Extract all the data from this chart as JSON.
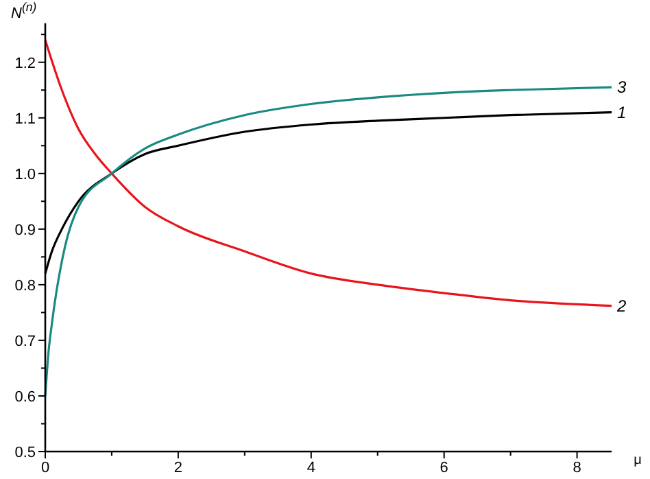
{
  "chart_data": {
    "type": "line",
    "xlabel": "μ",
    "ylabel": "N$^{(n)}$",
    "xlim": [
      0,
      8.52
    ],
    "ylim": [
      0.5,
      1.27
    ],
    "xticks": [
      0,
      {
        "value": 1,
        "label": null
      },
      2,
      {
        "value": 3,
        "label": null
      },
      4,
      {
        "value": 5,
        "label": null
      },
      6,
      {
        "value": 7,
        "label": null
      },
      8
    ],
    "yticks": [
      0.5,
      {
        "value": 0.55,
        "label": null
      },
      0.6,
      {
        "value": 0.65,
        "label": null
      },
      0.7,
      {
        "value": 0.75,
        "label": null
      },
      0.8,
      {
        "value": 0.85,
        "label": null
      },
      0.9,
      {
        "value": 0.95,
        "label": null
      },
      "1.0",
      {
        "value": 1.05,
        "label": null
      },
      1.1,
      {
        "value": 1.15,
        "label": null
      },
      1.2,
      {
        "value": 1.25,
        "label": null
      }
    ],
    "grid": false,
    "marker": "none",
    "line_style": "solid",
    "series": [
      {
        "name": "1",
        "color": "#000000",
        "x": [
          0,
          0.1,
          0.25,
          0.5,
          1,
          1.5,
          2,
          3,
          4,
          5,
          6,
          7,
          8.52
        ],
        "values": [
          0.82,
          0.86,
          0.9,
          0.95,
          1.0,
          1.035,
          1.05,
          1.075,
          1.088,
          1.095,
          1.1,
          1.105,
          1.11
        ]
      },
      {
        "name": "2",
        "color": "#e8141c",
        "x": [
          0,
          0.25,
          0.5,
          0.75,
          1,
          1.5,
          2,
          3,
          4,
          5,
          6,
          7,
          8.52
        ],
        "values": [
          1.24,
          1.15,
          1.08,
          1.035,
          1.0,
          0.94,
          0.905,
          0.86,
          0.82,
          0.8,
          0.785,
          0.772,
          0.762
        ]
      },
      {
        "name": "3",
        "color": "#1a8a80",
        "x": [
          0,
          0.05,
          0.1,
          0.3,
          0.5,
          1,
          1.5,
          2,
          3,
          4,
          5,
          6,
          7,
          8.52
        ],
        "values": [
          0.6,
          0.68,
          0.73,
          0.87,
          0.94,
          1.0,
          1.045,
          1.07,
          1.105,
          1.125,
          1.137,
          1.145,
          1.15,
          1.155
        ]
      }
    ]
  }
}
